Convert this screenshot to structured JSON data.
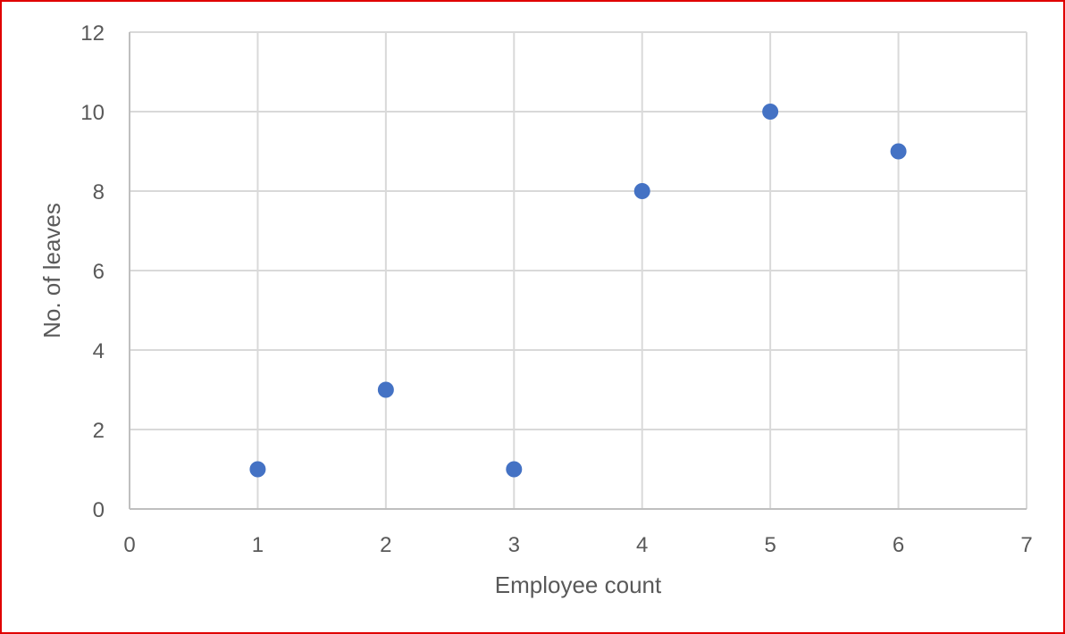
{
  "chart_data": {
    "type": "scatter",
    "title": "",
    "xlabel": "Employee count",
    "ylabel": "No. of leaves",
    "xlim": [
      0,
      7
    ],
    "ylim": [
      0,
      12
    ],
    "x_ticks": [
      0,
      1,
      2,
      3,
      4,
      5,
      6,
      7
    ],
    "y_ticks": [
      0,
      2,
      4,
      6,
      8,
      10,
      12
    ],
    "grid": true,
    "legend": "none",
    "series": [
      {
        "color": "#4472c4",
        "points": [
          {
            "x": 1,
            "y": 1
          },
          {
            "x": 2,
            "y": 3
          },
          {
            "x": 3,
            "y": 1
          },
          {
            "x": 4,
            "y": 8
          },
          {
            "x": 5,
            "y": 10
          },
          {
            "x": 6,
            "y": 9
          }
        ]
      }
    ],
    "colors": {
      "frame_border": "#e00000",
      "grid": "#d9d9d9",
      "text": "#595959"
    }
  }
}
